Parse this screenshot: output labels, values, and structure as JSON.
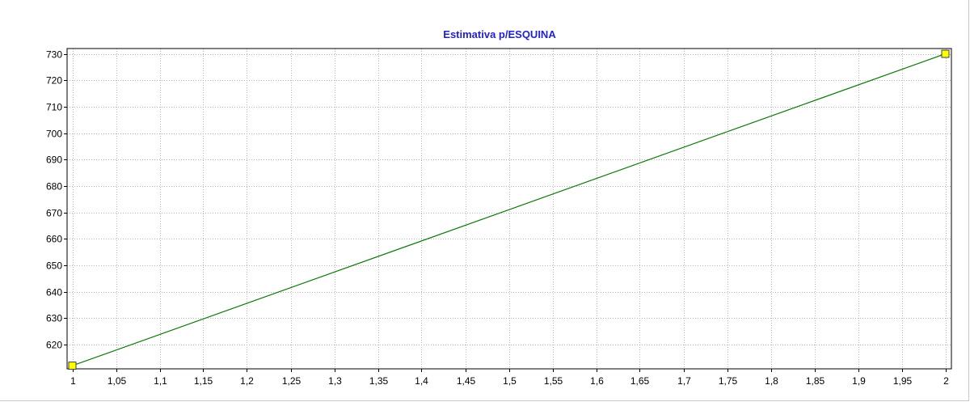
{
  "chart_data": {
    "type": "line",
    "title": "Estimativa p/ESQUINA",
    "xlabel": "",
    "ylabel": "",
    "x": [
      1,
      2
    ],
    "series": [
      {
        "values": [
          612,
          730
        ]
      }
    ],
    "xlim": [
      1,
      2
    ],
    "ylim": [
      610.8,
      732
    ],
    "xticks": [
      "1",
      "1,05",
      "1,1",
      "1,15",
      "1,2",
      "1,25",
      "1,3",
      "1,35",
      "1,4",
      "1,45",
      "1,5",
      "1,55",
      "1,6",
      "1,65",
      "1,7",
      "1,75",
      "1,8",
      "1,85",
      "1,9",
      "1,95",
      "2"
    ],
    "xtick_values": [
      1,
      1.05,
      1.1,
      1.15,
      1.2,
      1.25,
      1.3,
      1.35,
      1.4,
      1.45,
      1.5,
      1.55,
      1.6,
      1.65,
      1.7,
      1.75,
      1.8,
      1.85,
      1.9,
      1.95,
      2
    ],
    "yticks": [
      "620",
      "630",
      "640",
      "650",
      "660",
      "670",
      "680",
      "690",
      "700",
      "710",
      "720",
      "730"
    ],
    "ytick_values": [
      620,
      630,
      640,
      650,
      660,
      670,
      680,
      690,
      700,
      710,
      720,
      730
    ],
    "grid": true,
    "legend": "none",
    "colors": {
      "line": "#0a7a0a",
      "marker_fill": "#ffff00",
      "marker_stroke": "#404040",
      "title": "#1f1fd6",
      "grid": "#b4b4b4"
    }
  }
}
